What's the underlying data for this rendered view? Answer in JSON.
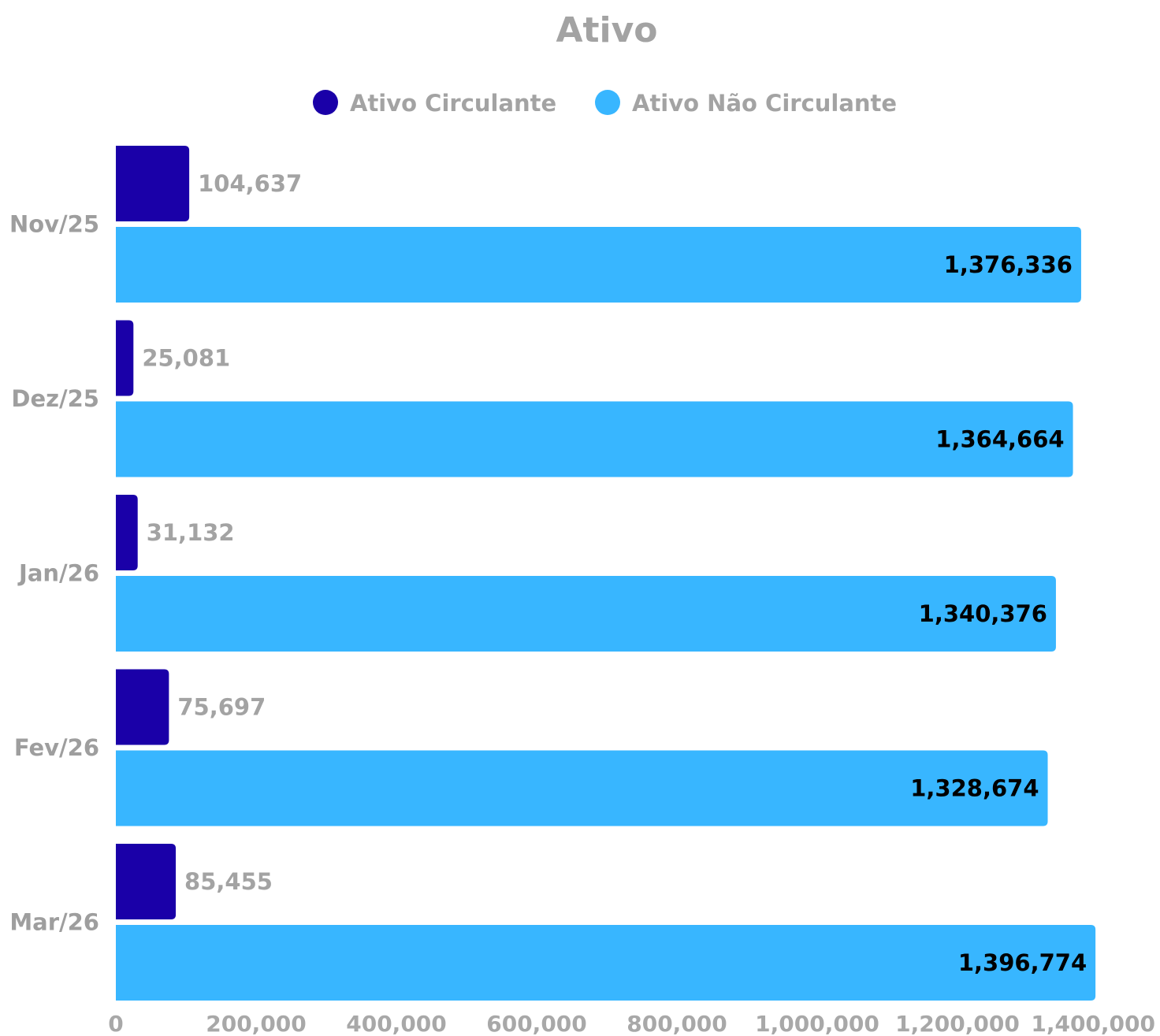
{
  "chart_data": {
    "type": "bar",
    "orientation": "horizontal",
    "title": "Ativo",
    "categories": [
      "Nov/25",
      "Dez/25",
      "Jan/26",
      "Fev/26",
      "Mar/26"
    ],
    "series": [
      {
        "name": "Ativo Circulante",
        "color": "#1a00a8",
        "values": [
          104637,
          25081,
          31132,
          75697,
          85455
        ],
        "labels": [
          "104,637",
          "25,081",
          "31,132",
          "75,697",
          "85,455"
        ]
      },
      {
        "name": "Ativo Não Circulante",
        "color": "#38b6ff",
        "values": [
          1376336,
          1364664,
          1340376,
          1328674,
          1396774
        ],
        "labels": [
          "1,376,336",
          "1,364,664",
          "1,340,376",
          "1,328,674",
          "1,396,774"
        ]
      }
    ],
    "xlim": [
      0,
      1400000
    ],
    "xticks": [
      0,
      200000,
      400000,
      600000,
      800000,
      1000000,
      1200000,
      1400000
    ],
    "xtick_labels": [
      "0",
      "200,000",
      "400,000",
      "600,000",
      "800,000",
      "1,000,000",
      "1,200,000",
      "1,400,000"
    ],
    "legend_position": "top",
    "grid": false
  }
}
